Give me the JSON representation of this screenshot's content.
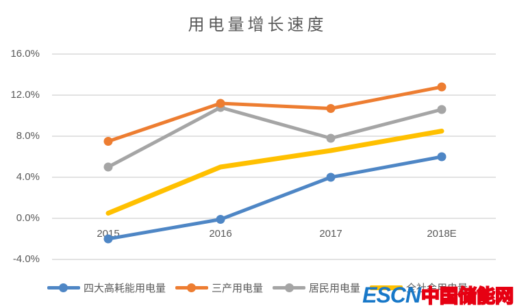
{
  "chart_data": {
    "type": "line",
    "title": "用电量增长速度",
    "categories": [
      "2015",
      "2016",
      "2017",
      "2018E"
    ],
    "series": [
      {
        "name": "四大高耗能用电量",
        "color": "#4E86C5",
        "values": [
          -2.0,
          -0.1,
          4.0,
          6.0
        ],
        "marker": true,
        "width": 5
      },
      {
        "name": "三产用电量",
        "color": "#ED7D31",
        "values": [
          7.5,
          11.2,
          10.7,
          12.8
        ],
        "marker": true,
        "width": 5
      },
      {
        "name": "居民用电量",
        "color": "#A5A5A5",
        "values": [
          5.0,
          10.8,
          7.8,
          10.6
        ],
        "marker": true,
        "width": 5
      },
      {
        "name": "全社会用电量",
        "color": "#FFC000",
        "values": [
          0.5,
          5.0,
          6.6,
          8.5
        ],
        "marker": false,
        "width": 7
      }
    ],
    "y_ticks": [
      "16.0%",
      "12.0%",
      "8.0%",
      "4.0%",
      "0.0%",
      "-4.0%"
    ],
    "y_tick_values": [
      16,
      12,
      8,
      4,
      0,
      -4
    ],
    "xlabel": "",
    "ylabel": "",
    "ylim": [
      -4,
      16
    ],
    "grid": true,
    "gridline_color": "#D9D9D9",
    "text_color": "#595959",
    "legend_position": "bottom"
  },
  "watermark": {
    "prefix": "ESCN",
    "suffix": "中国储能网",
    "prefix_color": "#1878C8",
    "suffix_color": "#E60012"
  }
}
